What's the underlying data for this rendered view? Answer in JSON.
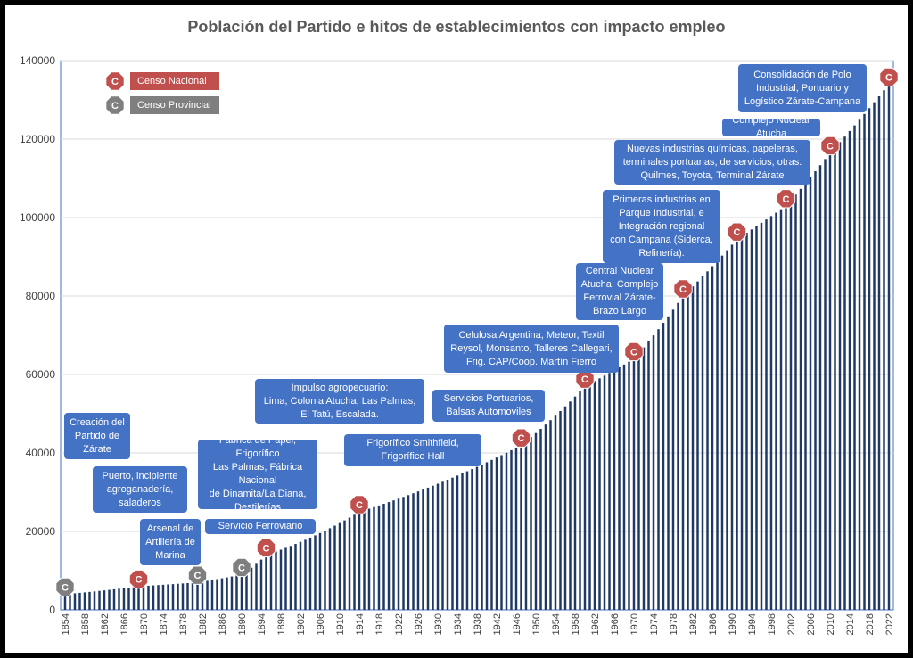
{
  "chart_data": {
    "type": "bar",
    "title": "Población del Partido e hitos de establecimientos con impacto empleo",
    "xlabel": "",
    "ylabel": "",
    "ylim": [
      0,
      140000
    ],
    "yticks": [
      0,
      20000,
      40000,
      60000,
      80000,
      100000,
      120000,
      140000
    ],
    "xticks": [
      1854,
      1858,
      1862,
      1866,
      1870,
      1874,
      1878,
      1882,
      1886,
      1890,
      1894,
      1898,
      1902,
      1906,
      1910,
      1914,
      1918,
      1922,
      1926,
      1930,
      1934,
      1938,
      1942,
      1946,
      1950,
      1954,
      1958,
      1962,
      1966,
      1970,
      1974,
      1978,
      1982,
      1986,
      1990,
      1994,
      1998,
      2002,
      2006,
      2010,
      2014,
      2018,
      2022
    ],
    "x_range": [
      1854,
      2022
    ],
    "bar_color": "#1f3864",
    "grid": true,
    "series": [
      {
        "years": [
          1854,
          1869,
          1881,
          1890,
          1895,
          1914,
          1947,
          1960,
          1970,
          1980,
          1991,
          2001,
          2010,
          2022
        ],
        "values": [
          4000,
          6000,
          7000,
          9000,
          14000,
          25000,
          42000,
          57000,
          64000,
          80000,
          94500,
          103000,
          116500,
          134000
        ]
      }
    ],
    "census": [
      {
        "year": 1854,
        "value": 4000,
        "kind": "provincial",
        "letter": "C"
      },
      {
        "year": 1869,
        "value": 6000,
        "kind": "nacional",
        "letter": "C"
      },
      {
        "year": 1881,
        "value": 7000,
        "kind": "provincial",
        "letter": "C"
      },
      {
        "year": 1890,
        "value": 9000,
        "kind": "provincial",
        "letter": "C"
      },
      {
        "year": 1895,
        "value": 14000,
        "kind": "nacional",
        "letter": "C"
      },
      {
        "year": 1914,
        "value": 25000,
        "kind": "nacional",
        "letter": "C"
      },
      {
        "year": 1947,
        "value": 42000,
        "kind": "nacional",
        "letter": "C"
      },
      {
        "year": 1960,
        "value": 57000,
        "kind": "nacional",
        "letter": "C"
      },
      {
        "year": 1970,
        "value": 64000,
        "kind": "nacional",
        "letter": "C"
      },
      {
        "year": 1980,
        "value": 80000,
        "kind": "nacional",
        "letter": "C"
      },
      {
        "year": 1991,
        "value": 94500,
        "kind": "nacional",
        "letter": "C"
      },
      {
        "year": 2001,
        "value": 103000,
        "kind": "nacional",
        "letter": "C"
      },
      {
        "year": 2010,
        "value": 116500,
        "kind": "nacional",
        "letter": "C"
      },
      {
        "year": 2022,
        "value": 134000,
        "kind": "nacional",
        "letter": "C"
      }
    ],
    "legend": [
      {
        "name": "Censo Nacional",
        "color": "#c0504d",
        "letter": "C"
      },
      {
        "name": "Censo Provincial",
        "color": "#7f7f7f",
        "letter": "C"
      }
    ],
    "annotations": [
      "Creación del\nPartido de\nZárate",
      "Puerto, incipiente\nagroganadería,\nsaladeros",
      "Arsenal de\nArtillería de\nMarina",
      "Servicio Ferroviario",
      "Fábrica de Papel, Frigorífico\nLas Palmas, Fábrica Nacional\nde Dinamita/La Diana,\nDestilerías",
      "Impulso agropecuario:\nLima, Colonia Atucha, Las Palmas,\nEl Tatú, Escalada.",
      "Frigorífico Smithfield,\nFrigorífico Hall",
      "Servicios Portuarios,\nBalsas Automoviles",
      "Celulosa Argentina, Meteor, Textil\nReysol, Monsanto, Talleres Callegari,\nFrig. CAP/Coop. Martín Fierro",
      "Central Nuclear\nAtucha, Complejo\nFerrovial Zárate-\nBrazo Largo",
      "Primeras industrias en\nParque Industrial, e\nIntegración regional\ncon Campana (Siderca,\nRefinería).",
      "Nuevas industrias químicas, papeleras,\nterminales portuarias, de servicios, otras.\nQuilmes, Toyota, Terminal Zárate",
      "Complejo Nuclear Atucha",
      "Consolidación de Polo\nIndustrial, Portuario y\nLogístico Zárate-Campana"
    ]
  }
}
